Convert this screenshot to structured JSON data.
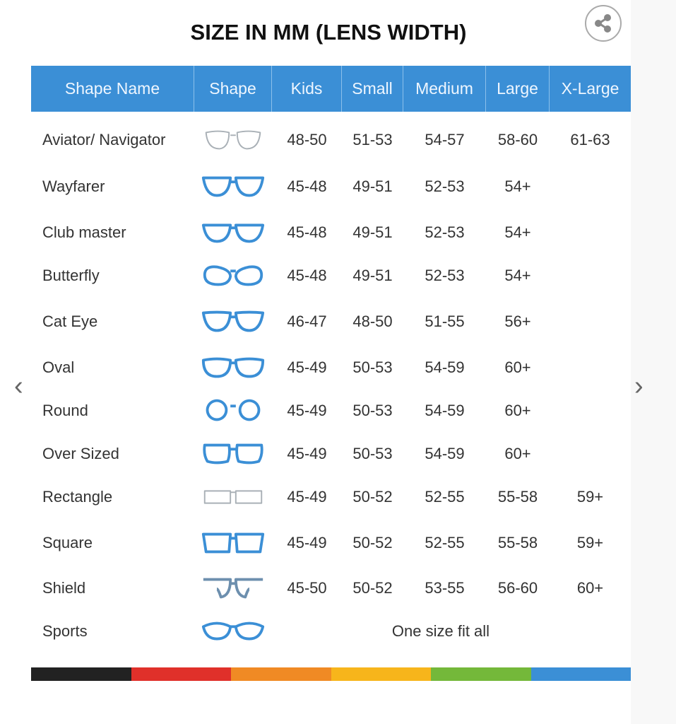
{
  "title": "SIZE IN MM (LENS WIDTH)",
  "share_icon": "share-icon",
  "columns": [
    "Shape Name",
    "Shape",
    "Kids",
    "Small",
    "Medium",
    "Large",
    "X-Large"
  ],
  "rows": [
    {
      "name": "Aviator/ Navigator",
      "shape": "aviator",
      "color": "#a9b0b6",
      "sizes": [
        "48-50",
        "51-53",
        "54-57",
        "58-60",
        "61-63"
      ]
    },
    {
      "name": "Wayfarer",
      "shape": "wayfarer",
      "color": "#3b8fd6",
      "sizes": [
        "45-48",
        "49-51",
        "52-53",
        "54+",
        ""
      ]
    },
    {
      "name": "Club master",
      "shape": "clubmaster",
      "color": "#3b8fd6",
      "sizes": [
        "45-48",
        "49-51",
        "52-53",
        "54+",
        ""
      ]
    },
    {
      "name": "Butterfly",
      "shape": "butterfly",
      "color": "#3b8fd6",
      "sizes": [
        "45-48",
        "49-51",
        "52-53",
        "54+",
        ""
      ]
    },
    {
      "name": "Cat Eye",
      "shape": "cateye",
      "color": "#3b8fd6",
      "sizes": [
        "46-47",
        "48-50",
        "51-55",
        "56+",
        ""
      ]
    },
    {
      "name": "Oval",
      "shape": "oval",
      "color": "#3b8fd6",
      "sizes": [
        "45-49",
        "50-53",
        "54-59",
        "60+",
        ""
      ]
    },
    {
      "name": "Round",
      "shape": "round",
      "color": "#3b8fd6",
      "sizes": [
        "45-49",
        "50-53",
        "54-59",
        "60+",
        ""
      ]
    },
    {
      "name": "Over Sized",
      "shape": "oversized",
      "color": "#3b8fd6",
      "sizes": [
        "45-49",
        "50-53",
        "54-59",
        "60+",
        ""
      ]
    },
    {
      "name": "Rectangle",
      "shape": "rectangle",
      "color": "#a9b0b6",
      "sizes": [
        "45-49",
        "50-52",
        "52-55",
        "55-58",
        "59+"
      ]
    },
    {
      "name": "Square",
      "shape": "square",
      "color": "#3b8fd6",
      "sizes": [
        "45-49",
        "50-52",
        "52-55",
        "55-58",
        "59+"
      ]
    },
    {
      "name": "Shield",
      "shape": "shield",
      "color": "#6d8fae",
      "sizes": [
        "45-50",
        "50-52",
        "53-55",
        "56-60",
        "60+"
      ]
    },
    {
      "name": "Sports",
      "shape": "sports",
      "color": "#3b8fd6",
      "sizes": [],
      "note": "One size fit all"
    }
  ],
  "color_bar": [
    "#222222",
    "#e0302a",
    "#f08a24",
    "#f7b51b",
    "#74b83a",
    "#3b8fd6"
  ],
  "nav": {
    "prev_icon": "chevron-left-icon",
    "next_icon": "chevron-right-icon"
  }
}
